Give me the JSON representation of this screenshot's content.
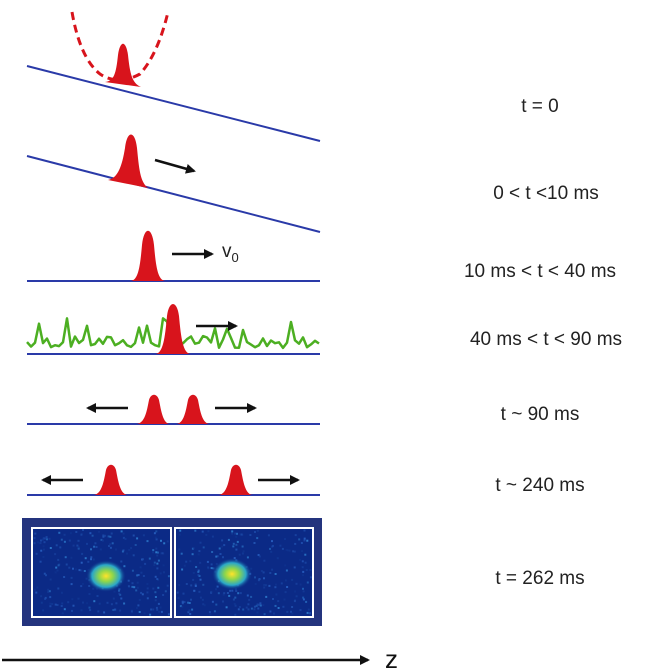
{
  "stages": [
    {
      "time_label": "t = 0"
    },
    {
      "time_label": "0 < t <10 ms"
    },
    {
      "time_label": "10 ms < t < 40 ms",
      "velocity_label": "v",
      "velocity_subscript": "0"
    },
    {
      "time_label": "40 ms < t < 90 ms"
    },
    {
      "time_label": "t ~ 90 ms"
    },
    {
      "time_label": "t ~ 240 ms"
    },
    {
      "time_label": "t = 262 ms"
    }
  ],
  "axis": {
    "label": "z"
  },
  "colors": {
    "baseline": "#2a3aa8",
    "packet": "#d8141c",
    "potential": "#d8141c",
    "disorder": "#4caf22",
    "arrow": "#111111",
    "image_frame": "#24347e",
    "image_bg": "#0b2a86"
  }
}
